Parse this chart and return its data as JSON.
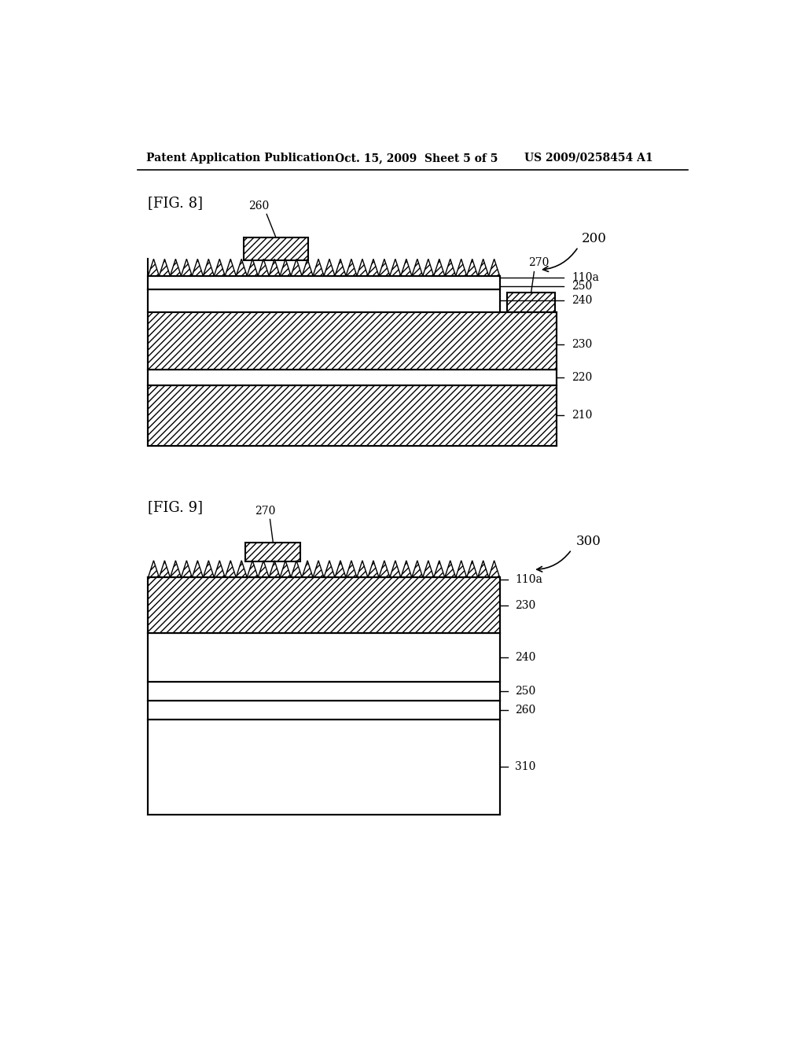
{
  "background_color": "#ffffff",
  "header_text": "Patent Application Publication",
  "header_date": "Oct. 15, 2009  Sheet 5 of 5",
  "header_patent": "US 2009/0258454 A1",
  "fig8_label": "[FIG. 8]",
  "fig9_label": "[FIG. 9]",
  "label_200": "200",
  "label_300": "300"
}
